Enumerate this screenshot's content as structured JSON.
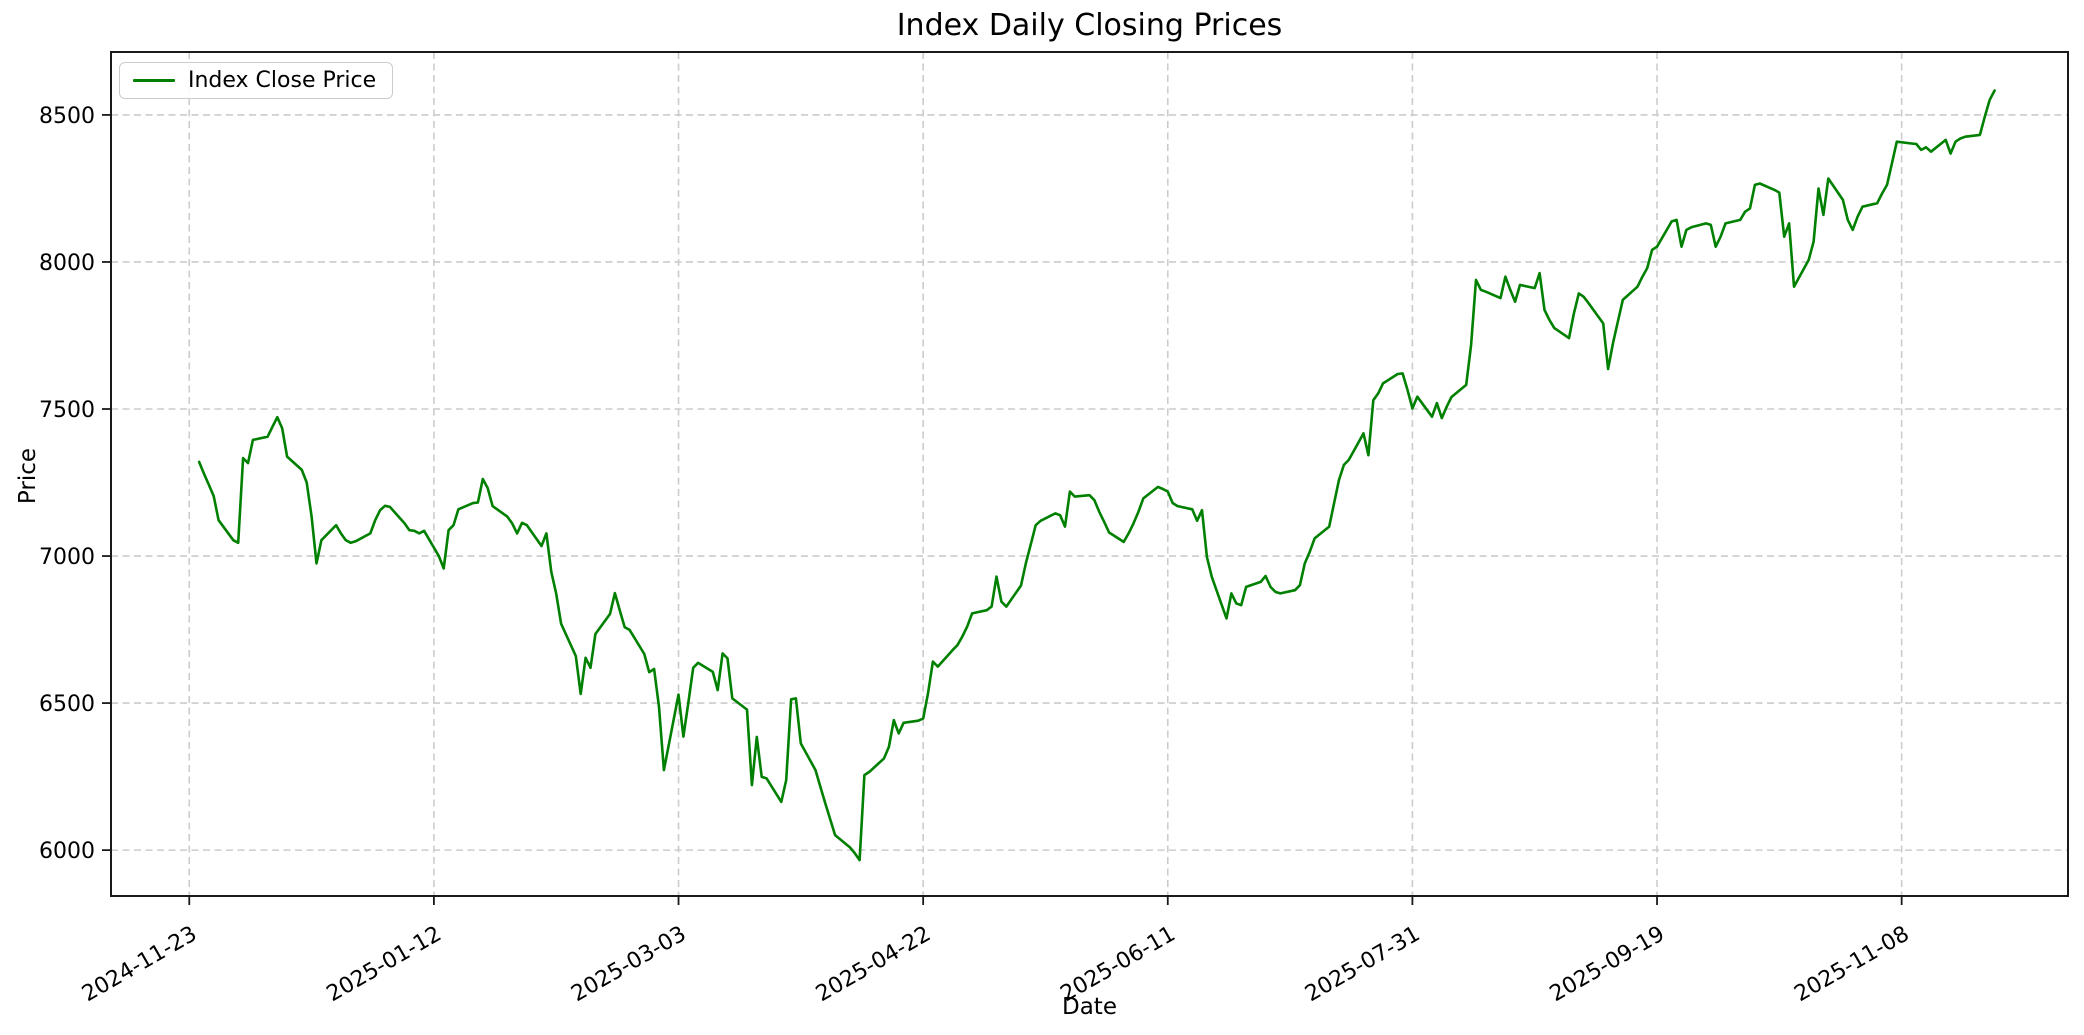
{
  "figure": {
    "title": "Index Daily Closing Prices",
    "xlabel": "Date",
    "ylabel": "Price"
  },
  "legend": {
    "label": "Index Close Price"
  },
  "colors": {
    "line": "#008000",
    "grid": "#cccccc",
    "spine": "#1a1a1a",
    "text": "#000000"
  },
  "chart_data": {
    "type": "line",
    "title": "Index Daily Closing Prices",
    "xlabel": "Date",
    "ylabel": "Price",
    "legend": [
      "Index Close Price"
    ],
    "legend_position": "upper left",
    "grid": true,
    "grid_style": "dashed",
    "x_tick_labels": [
      "2024-11-23",
      "2025-01-12",
      "2025-03-03",
      "2025-04-22",
      "2025-06-11",
      "2025-07-31",
      "2025-09-19",
      "2025-11-08"
    ],
    "y_ticks": [
      6000,
      6500,
      7000,
      7500,
      8000,
      8500
    ],
    "xlim": [
      "2024-11-07",
      "2025-12-12"
    ],
    "ylim": [
      5844,
      8714
    ],
    "series": [
      {
        "name": "Index Close Price",
        "color": "#008000",
        "points": [
          [
            "2024-11-25",
            7320
          ],
          [
            "2024-11-26",
            7280
          ],
          [
            "2024-11-27",
            7242
          ],
          [
            "2024-11-28",
            7204
          ],
          [
            "2024-11-29",
            7122
          ],
          [
            "2024-12-02",
            7054
          ],
          [
            "2024-12-03",
            7045
          ],
          [
            "2024-12-04",
            7333
          ],
          [
            "2024-12-05",
            7316
          ],
          [
            "2024-12-06",
            7395
          ],
          [
            "2024-12-09",
            7406
          ],
          [
            "2024-12-10",
            7440
          ],
          [
            "2024-12-11",
            7472
          ],
          [
            "2024-12-12",
            7434
          ],
          [
            "2024-12-13",
            7338
          ],
          [
            "2024-12-16",
            7293
          ],
          [
            "2024-12-17",
            7250
          ],
          [
            "2024-12-18",
            7134
          ],
          [
            "2024-12-19",
            6975
          ],
          [
            "2024-12-20",
            7054
          ],
          [
            "2024-12-23",
            7105
          ],
          [
            "2024-12-24",
            7077
          ],
          [
            "2024-12-25",
            7054
          ],
          [
            "2024-12-26",
            7045
          ],
          [
            "2024-12-27",
            7050
          ],
          [
            "2024-12-30",
            7077
          ],
          [
            "2024-12-31",
            7122
          ],
          [
            "2025-01-01",
            7156
          ],
          [
            "2025-01-02",
            7171
          ],
          [
            "2025-01-03",
            7167
          ],
          [
            "2025-01-06",
            7111
          ],
          [
            "2025-01-07",
            7088
          ],
          [
            "2025-01-08",
            7086
          ],
          [
            "2025-01-09",
            7077
          ],
          [
            "2025-01-10",
            7086
          ],
          [
            "2025-01-13",
            7000
          ],
          [
            "2025-01-14",
            6958
          ],
          [
            "2025-01-15",
            7088
          ],
          [
            "2025-01-16",
            7105
          ],
          [
            "2025-01-17",
            7159
          ],
          [
            "2025-01-20",
            7180
          ],
          [
            "2025-01-21",
            7182
          ],
          [
            "2025-01-22",
            7262
          ],
          [
            "2025-01-23",
            7231
          ],
          [
            "2025-01-24",
            7170
          ],
          [
            "2025-01-27",
            7134
          ],
          [
            "2025-01-28",
            7111
          ],
          [
            "2025-01-29",
            7077
          ],
          [
            "2025-01-30",
            7113
          ],
          [
            "2025-01-31",
            7105
          ],
          [
            "2025-02-03",
            7034
          ],
          [
            "2025-02-04",
            7077
          ],
          [
            "2025-02-05",
            6946
          ],
          [
            "2025-02-06",
            6872
          ],
          [
            "2025-02-07",
            6770
          ],
          [
            "2025-02-10",
            6660
          ],
          [
            "2025-02-11",
            6531
          ],
          [
            "2025-02-12",
            6654
          ],
          [
            "2025-02-13",
            6620
          ],
          [
            "2025-02-14",
            6735
          ],
          [
            "2025-02-17",
            6803
          ],
          [
            "2025-02-18",
            6874
          ],
          [
            "2025-02-19",
            6815
          ],
          [
            "2025-02-20",
            6758
          ],
          [
            "2025-02-21",
            6749
          ],
          [
            "2025-02-24",
            6667
          ],
          [
            "2025-02-25",
            6605
          ],
          [
            "2025-02-26",
            6616
          ],
          [
            "2025-02-27",
            6487
          ],
          [
            "2025-02-28",
            6272
          ],
          [
            "2025-03-03",
            6529
          ],
          [
            "2025-03-04",
            6386
          ],
          [
            "2025-03-05",
            6500
          ],
          [
            "2025-03-06",
            6620
          ],
          [
            "2025-03-07",
            6637
          ],
          [
            "2025-03-10",
            6606
          ],
          [
            "2025-03-11",
            6544
          ],
          [
            "2025-03-12",
            6669
          ],
          [
            "2025-03-13",
            6652
          ],
          [
            "2025-03-14",
            6516
          ],
          [
            "2025-03-17",
            6478
          ],
          [
            "2025-03-18",
            6221
          ],
          [
            "2025-03-19",
            6385
          ],
          [
            "2025-03-20",
            6249
          ],
          [
            "2025-03-21",
            6244
          ],
          [
            "2025-03-24",
            6164
          ],
          [
            "2025-03-25",
            6238
          ],
          [
            "2025-03-26",
            6513
          ],
          [
            "2025-03-27",
            6516
          ],
          [
            "2025-03-28",
            6363
          ],
          [
            "2025-03-31",
            6272
          ],
          [
            "2025-04-01",
            6215
          ],
          [
            "2025-04-02",
            6159
          ],
          [
            "2025-04-03",
            6105
          ],
          [
            "2025-04-04",
            6051
          ],
          [
            "2025-04-07",
            6010
          ],
          [
            "2025-04-08",
            5990
          ],
          [
            "2025-04-09",
            5966
          ],
          [
            "2025-04-10",
            6255
          ],
          [
            "2025-04-11",
            6266
          ],
          [
            "2025-04-14",
            6312
          ],
          [
            "2025-04-15",
            6351
          ],
          [
            "2025-04-16",
            6442
          ],
          [
            "2025-04-17",
            6397
          ],
          [
            "2025-04-18",
            6433
          ],
          [
            "2025-04-21",
            6440
          ],
          [
            "2025-04-22",
            6448
          ],
          [
            "2025-04-23",
            6533
          ],
          [
            "2025-04-24",
            6641
          ],
          [
            "2025-04-25",
            6624
          ],
          [
            "2025-04-28",
            6680
          ],
          [
            "2025-04-29",
            6697
          ],
          [
            "2025-04-30",
            6726
          ],
          [
            "2025-05-01",
            6760
          ],
          [
            "2025-05-02",
            6805
          ],
          [
            "2025-05-05",
            6816
          ],
          [
            "2025-05-06",
            6828
          ],
          [
            "2025-05-07",
            6930
          ],
          [
            "2025-05-08",
            6845
          ],
          [
            "2025-05-09",
            6828
          ],
          [
            "2025-05-12",
            6900
          ],
          [
            "2025-05-13",
            6976
          ],
          [
            "2025-05-14",
            7040
          ],
          [
            "2025-05-15",
            7105
          ],
          [
            "2025-05-16",
            7120
          ],
          [
            "2025-05-19",
            7145
          ],
          [
            "2025-05-20",
            7139
          ],
          [
            "2025-05-21",
            7100
          ],
          [
            "2025-05-22",
            7219
          ],
          [
            "2025-05-23",
            7202
          ],
          [
            "2025-05-26",
            7207
          ],
          [
            "2025-05-27",
            7190
          ],
          [
            "2025-05-28",
            7150
          ],
          [
            "2025-05-29",
            7116
          ],
          [
            "2025-05-30",
            7080
          ],
          [
            "2025-06-02",
            7048
          ],
          [
            "2025-06-03",
            7077
          ],
          [
            "2025-06-04",
            7111
          ],
          [
            "2025-06-05",
            7150
          ],
          [
            "2025-06-06",
            7196
          ],
          [
            "2025-06-09",
            7235
          ],
          [
            "2025-06-10",
            7228
          ],
          [
            "2025-06-11",
            7219
          ],
          [
            "2025-06-12",
            7180
          ],
          [
            "2025-06-13",
            7170
          ],
          [
            "2025-06-16",
            7159
          ],
          [
            "2025-06-17",
            7120
          ],
          [
            "2025-06-18",
            7156
          ],
          [
            "2025-06-19",
            6997
          ],
          [
            "2025-06-20",
            6929
          ],
          [
            "2025-06-23",
            6788
          ],
          [
            "2025-06-24",
            6873
          ],
          [
            "2025-06-25",
            6839
          ],
          [
            "2025-06-26",
            6833
          ],
          [
            "2025-06-27",
            6895
          ],
          [
            "2025-06-30",
            6912
          ],
          [
            "2025-07-01",
            6932
          ],
          [
            "2025-07-02",
            6895
          ],
          [
            "2025-07-03",
            6878
          ],
          [
            "2025-07-04",
            6873
          ],
          [
            "2025-07-07",
            6884
          ],
          [
            "2025-07-08",
            6901
          ],
          [
            "2025-07-09",
            6975
          ],
          [
            "2025-07-10",
            7014
          ],
          [
            "2025-07-11",
            7060
          ],
          [
            "2025-07-14",
            7100
          ],
          [
            "2025-07-15",
            7180
          ],
          [
            "2025-07-16",
            7259
          ],
          [
            "2025-07-17",
            7310
          ],
          [
            "2025-07-18",
            7327
          ],
          [
            "2025-07-21",
            7417
          ],
          [
            "2025-07-22",
            7343
          ],
          [
            "2025-07-23",
            7530
          ],
          [
            "2025-07-24",
            7553
          ],
          [
            "2025-07-25",
            7587
          ],
          [
            "2025-07-28",
            7619
          ],
          [
            "2025-07-29",
            7621
          ],
          [
            "2025-07-30",
            7565
          ],
          [
            "2025-07-31",
            7502
          ],
          [
            "2025-08-01",
            7542
          ],
          [
            "2025-08-04",
            7474
          ],
          [
            "2025-08-05",
            7520
          ],
          [
            "2025-08-06",
            7469
          ],
          [
            "2025-08-07",
            7508
          ],
          [
            "2025-08-08",
            7541
          ],
          [
            "2025-08-11",
            7582
          ],
          [
            "2025-08-12",
            7718
          ],
          [
            "2025-08-13",
            7939
          ],
          [
            "2025-08-14",
            7905
          ],
          [
            "2025-08-15",
            7899
          ],
          [
            "2025-08-18",
            7877
          ],
          [
            "2025-08-19",
            7950
          ],
          [
            "2025-08-20",
            7905
          ],
          [
            "2025-08-21",
            7865
          ],
          [
            "2025-08-22",
            7922
          ],
          [
            "2025-08-25",
            7911
          ],
          [
            "2025-08-26",
            7962
          ],
          [
            "2025-08-27",
            7837
          ],
          [
            "2025-08-28",
            7803
          ],
          [
            "2025-08-29",
            7775
          ],
          [
            "2025-09-01",
            7741
          ],
          [
            "2025-09-02",
            7825
          ],
          [
            "2025-09-03",
            7893
          ],
          [
            "2025-09-04",
            7882
          ],
          [
            "2025-09-05",
            7860
          ],
          [
            "2025-09-08",
            7791
          ],
          [
            "2025-09-09",
            7636
          ],
          [
            "2025-09-10",
            7724
          ],
          [
            "2025-09-11",
            7798
          ],
          [
            "2025-09-12",
            7871
          ],
          [
            "2025-09-15",
            7916
          ],
          [
            "2025-09-16",
            7950
          ],
          [
            "2025-09-17",
            7979
          ],
          [
            "2025-09-18",
            8041
          ],
          [
            "2025-09-19",
            8052
          ],
          [
            "2025-09-22",
            8138
          ],
          [
            "2025-09-23",
            8143
          ],
          [
            "2025-09-24",
            8052
          ],
          [
            "2025-09-25",
            8109
          ],
          [
            "2025-09-26",
            8118
          ],
          [
            "2025-09-29",
            8131
          ],
          [
            "2025-09-30",
            8126
          ],
          [
            "2025-10-01",
            8052
          ],
          [
            "2025-10-02",
            8086
          ],
          [
            "2025-10-03",
            8131
          ],
          [
            "2025-10-06",
            8143
          ],
          [
            "2025-10-07",
            8171
          ],
          [
            "2025-10-08",
            8182
          ],
          [
            "2025-10-09",
            8262
          ],
          [
            "2025-10-10",
            8267
          ],
          [
            "2025-10-13",
            8245
          ],
          [
            "2025-10-14",
            8236
          ],
          [
            "2025-10-15",
            8086
          ],
          [
            "2025-10-16",
            8131
          ],
          [
            "2025-10-17",
            7916
          ],
          [
            "2025-10-20",
            8007
          ],
          [
            "2025-10-21",
            8069
          ],
          [
            "2025-10-22",
            8250
          ],
          [
            "2025-10-23",
            8160
          ],
          [
            "2025-10-24",
            8284
          ],
          [
            "2025-10-27",
            8211
          ],
          [
            "2025-10-28",
            8143
          ],
          [
            "2025-10-29",
            8109
          ],
          [
            "2025-10-30",
            8154
          ],
          [
            "2025-10-31",
            8188
          ],
          [
            "2025-11-03",
            8200
          ],
          [
            "2025-11-04",
            8233
          ],
          [
            "2025-11-05",
            8262
          ],
          [
            "2025-11-06",
            8335
          ],
          [
            "2025-11-07",
            8409
          ],
          [
            "2025-11-10",
            8403
          ],
          [
            "2025-11-11",
            8401
          ],
          [
            "2025-11-12",
            8381
          ],
          [
            "2025-11-13",
            8390
          ],
          [
            "2025-11-14",
            8375
          ],
          [
            "2025-11-17",
            8415
          ],
          [
            "2025-11-18",
            8369
          ],
          [
            "2025-11-19",
            8409
          ],
          [
            "2025-11-20",
            8420
          ],
          [
            "2025-11-21",
            8426
          ],
          [
            "2025-11-24",
            8432
          ],
          [
            "2025-11-25",
            8494
          ],
          [
            "2025-11-26",
            8551
          ],
          [
            "2025-11-27",
            8583
          ]
        ]
      }
    ]
  }
}
